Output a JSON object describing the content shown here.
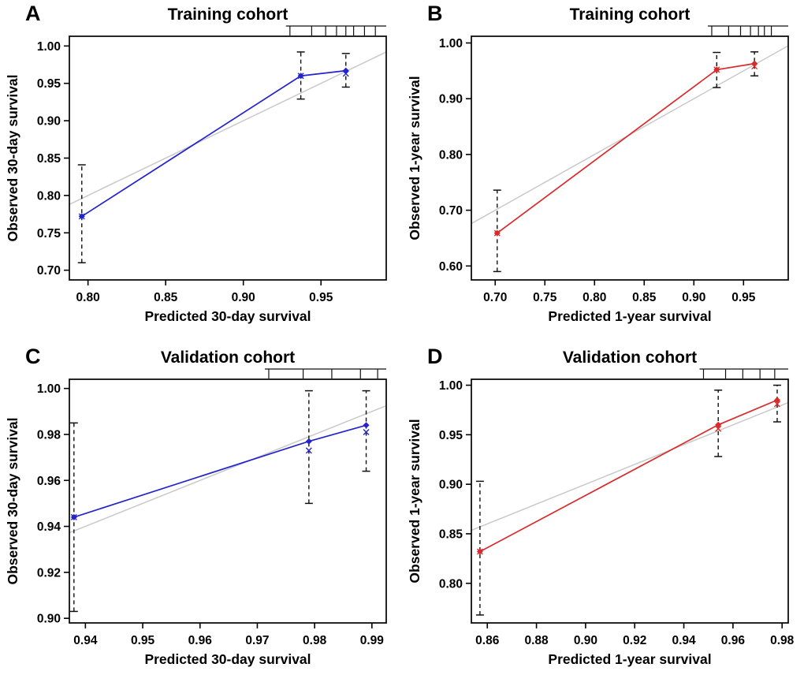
{
  "figure": {
    "background": "#ffffff",
    "frame_color": "#000000",
    "text_color": "#000000"
  },
  "chart_data": [
    {
      "panel": "A",
      "type": "line",
      "title": "Training cohort",
      "xlabel": "Predicted 30-day survival",
      "ylabel": "Observed 30-day survival",
      "xlim": [
        0.788,
        0.992
      ],
      "ylim": [
        0.687,
        1.013
      ],
      "xticks": [
        0.8,
        0.85,
        0.9,
        0.95
      ],
      "yticks": [
        0.7,
        0.75,
        0.8,
        0.85,
        0.9,
        0.95,
        1.0
      ],
      "grid": false,
      "legend": false,
      "line_color": "#2424cc",
      "reference_line_color": "#c9c9c9",
      "error_bar_color": "#111111",
      "points": [
        {
          "x": 0.796,
          "y": 0.772,
          "lo": 0.71,
          "hi": 0.841
        },
        {
          "x": 0.937,
          "y": 0.96,
          "lo": 0.929,
          "hi": 0.992
        },
        {
          "x": 0.966,
          "y": 0.967,
          "y2": 0.963,
          "lo": 0.945,
          "hi": 0.99
        }
      ],
      "rug_x": [
        0.93,
        0.944,
        0.953,
        0.96,
        0.966,
        0.971,
        0.978,
        0.985
      ]
    },
    {
      "panel": "B",
      "type": "line",
      "title": "Training cohort",
      "xlabel": "Predicted 1-year survival",
      "ylabel": "Observed 1-year survival",
      "xlim": [
        0.676,
        0.995
      ],
      "ylim": [
        0.575,
        1.012
      ],
      "xticks": [
        0.7,
        0.75,
        0.8,
        0.85,
        0.9,
        0.95
      ],
      "yticks": [
        0.6,
        0.7,
        0.8,
        0.9,
        1.0
      ],
      "grid": false,
      "legend": false,
      "line_color": "#d92b2b",
      "reference_line_color": "#c9c9c9",
      "error_bar_color": "#111111",
      "points": [
        {
          "x": 0.702,
          "y": 0.659,
          "lo": 0.59,
          "hi": 0.736
        },
        {
          "x": 0.923,
          "y": 0.952,
          "lo": 0.92,
          "hi": 0.983
        },
        {
          "x": 0.961,
          "y": 0.963,
          "y2": 0.958,
          "lo": 0.941,
          "hi": 0.984
        }
      ],
      "rug_x": [
        0.918,
        0.935,
        0.947,
        0.957,
        0.965,
        0.971,
        0.978
      ]
    },
    {
      "panel": "C",
      "type": "line",
      "title": "Validation cohort",
      "xlabel": "Predicted 30-day survival",
      "ylabel": "Observed 30-day survival",
      "xlim": [
        0.9372,
        0.9925
      ],
      "ylim": [
        0.898,
        1.004
      ],
      "xticks": [
        0.94,
        0.95,
        0.96,
        0.97,
        0.98,
        0.99
      ],
      "yticks": [
        0.9,
        0.92,
        0.94,
        0.96,
        0.98,
        1.0
      ],
      "grid": false,
      "legend": false,
      "line_color": "#2424cc",
      "reference_line_color": "#c9c9c9",
      "error_bar_color": "#111111",
      "points": [
        {
          "x": 0.938,
          "y": 0.944,
          "lo": 0.903,
          "hi": 0.985
        },
        {
          "x": 0.979,
          "y": 0.977,
          "y2": 0.973,
          "lo": 0.95,
          "hi": 0.999
        },
        {
          "x": 0.989,
          "y": 0.984,
          "y2": 0.981,
          "lo": 0.964,
          "hi": 0.999
        }
      ],
      "rug_x": [
        0.972,
        0.978,
        0.983,
        0.988,
        0.991
      ]
    },
    {
      "panel": "D",
      "type": "line",
      "title": "Validation cohort",
      "xlabel": "Predicted 1-year survival",
      "ylabel": "Observed 1-year survival",
      "xlim": [
        0.8535,
        0.9825
      ],
      "ylim": [
        0.76,
        1.006
      ],
      "xticks": [
        0.86,
        0.88,
        0.9,
        0.92,
        0.94,
        0.96,
        0.98
      ],
      "yticks": [
        0.8,
        0.85,
        0.9,
        0.95,
        1.0
      ],
      "grid": false,
      "legend": false,
      "line_color": "#d92b2b",
      "reference_line_color": "#c9c9c9",
      "error_bar_color": "#111111",
      "points": [
        {
          "x": 0.857,
          "y": 0.832,
          "lo": 0.768,
          "hi": 0.903
        },
        {
          "x": 0.954,
          "y": 0.96,
          "y2": 0.956,
          "lo": 0.928,
          "hi": 0.995
        },
        {
          "x": 0.978,
          "y": 0.985,
          "y2": 0.981,
          "lo": 0.963,
          "hi": 1.0
        }
      ],
      "rug_x": [
        0.948,
        0.957,
        0.964,
        0.971,
        0.977
      ]
    }
  ]
}
